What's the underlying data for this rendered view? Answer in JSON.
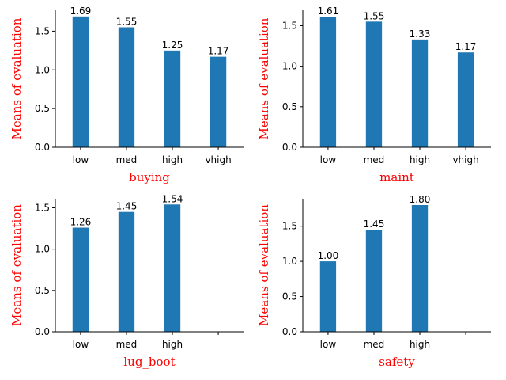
{
  "colors": {
    "bar": "#1f77b4",
    "label": "#ff0000",
    "axis": "#000000"
  },
  "chart_data": [
    {
      "type": "bar",
      "xlabel": "buying",
      "ylabel": "Means of evaluation",
      "categories": [
        "low",
        "med",
        "high",
        "vhigh"
      ],
      "values": [
        1.69,
        1.55,
        1.25,
        1.17
      ],
      "value_labels": [
        "1.69",
        "1.55",
        "1.25",
        "1.17"
      ],
      "ylim": [
        0,
        1.77
      ],
      "yticks": [
        0.0,
        0.5,
        1.0,
        1.5
      ],
      "ytick_labels": [
        "0.0",
        "0.5",
        "1.0",
        "1.5"
      ],
      "slots": 4
    },
    {
      "type": "bar",
      "xlabel": "maint",
      "ylabel": "Means of evaluation",
      "categories": [
        "low",
        "med",
        "high",
        "vhigh"
      ],
      "values": [
        1.61,
        1.55,
        1.33,
        1.17
      ],
      "value_labels": [
        "1.61",
        "1.55",
        "1.33",
        "1.17"
      ],
      "ylim": [
        0,
        1.69
      ],
      "yticks": [
        0.0,
        0.5,
        1.0,
        1.5
      ],
      "ytick_labels": [
        "0.0",
        "0.5",
        "1.0",
        "1.5"
      ],
      "slots": 4
    },
    {
      "type": "bar",
      "xlabel": "lug_boot",
      "ylabel": "Means of evaluation",
      "categories": [
        "low",
        "med",
        "high"
      ],
      "values": [
        1.26,
        1.45,
        1.54
      ],
      "value_labels": [
        "1.26",
        "1.45",
        "1.54"
      ],
      "ylim": [
        0,
        1.61
      ],
      "yticks": [
        0.0,
        0.5,
        1.0,
        1.5
      ],
      "ytick_labels": [
        "0.0",
        "0.5",
        "1.0",
        "1.5"
      ],
      "slots": 4
    },
    {
      "type": "bar",
      "xlabel": "safety",
      "ylabel": "Means of evaluation",
      "categories": [
        "low",
        "med",
        "high"
      ],
      "values": [
        1.0,
        1.45,
        1.8
      ],
      "value_labels": [
        "1.00",
        "1.45",
        "1.80"
      ],
      "ylim": [
        0,
        1.89
      ],
      "yticks": [
        0.0,
        0.5,
        1.0,
        1.5
      ],
      "ytick_labels": [
        "0.0",
        "0.5",
        "1.0",
        "1.5"
      ],
      "slots": 4
    }
  ]
}
